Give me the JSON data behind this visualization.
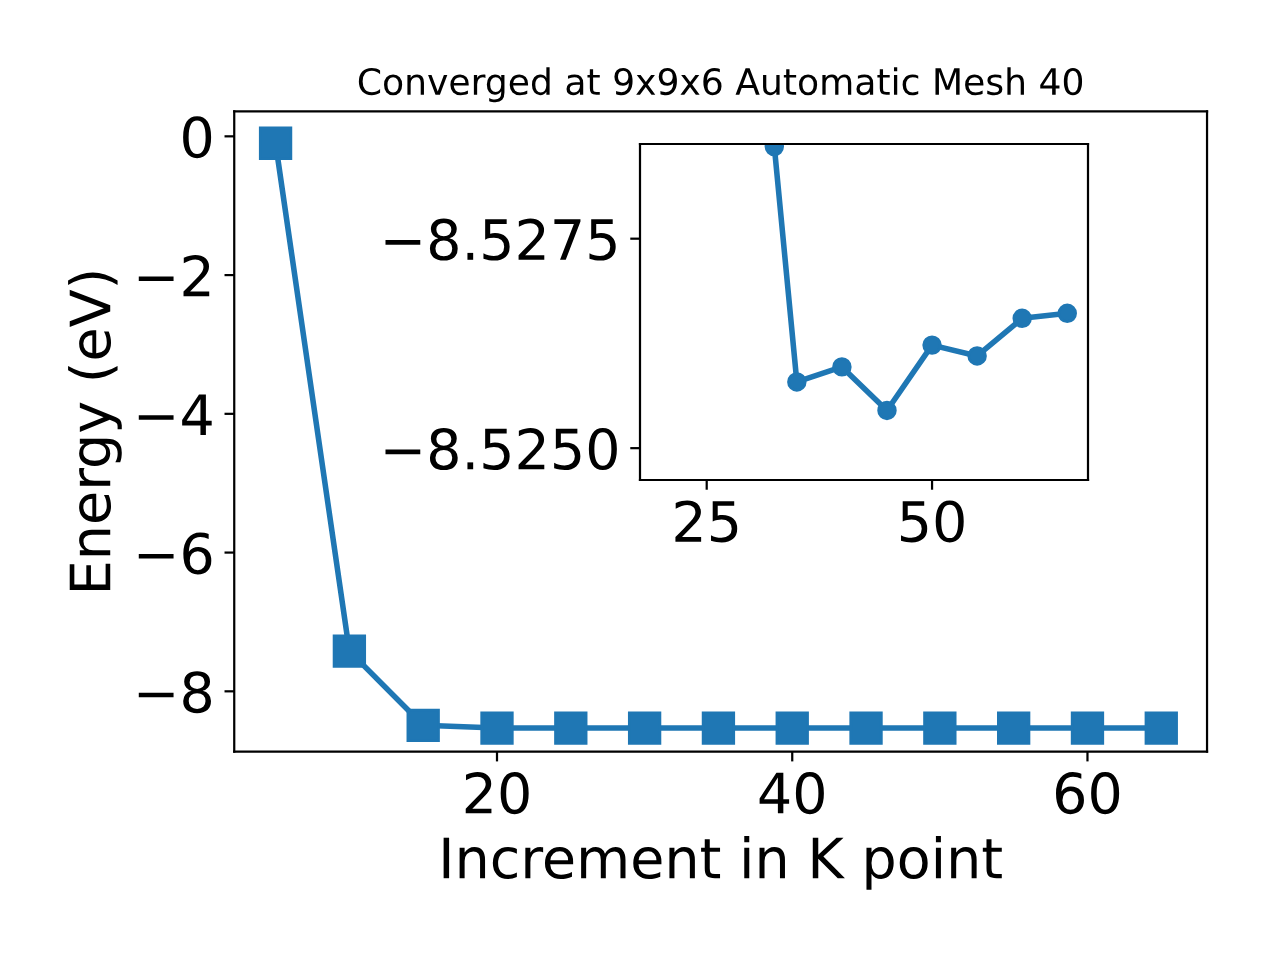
{
  "chart_data": [
    {
      "type": "line",
      "title": "Converged at 9x9x6 Automatic Mesh 40",
      "xlabel": "Increment in K point",
      "ylabel": "Energy (eV)",
      "x": [
        5,
        10,
        15,
        20,
        25,
        30,
        35,
        40,
        45,
        50,
        55,
        60,
        65
      ],
      "series": [
        {
          "color": "#1f77b4",
          "values": [
            -0.1,
            -7.42,
            -8.49,
            -8.53,
            -8.53,
            -8.53,
            -8.53,
            -8.53,
            -8.53,
            -8.53,
            -8.53,
            -8.53,
            -8.53
          ]
        }
      ],
      "xlim": [
        2.2,
        68.1
      ],
      "ylim": [
        -8.87,
        0.36
      ],
      "xticks": [
        20,
        40,
        60
      ],
      "yticks": [
        {
          "value": -8,
          "label": "−8"
        },
        {
          "value": -6,
          "label": "−6"
        },
        {
          "value": -4,
          "label": "−4"
        },
        {
          "value": -2,
          "label": "−2"
        },
        0
      ],
      "marker": "square",
      "line_style": "solid",
      "grid": false,
      "legend": false
    },
    {
      "type": "line",
      "x": [
        32.5,
        35,
        40,
        45,
        50,
        55,
        60,
        65
      ],
      "series": [
        {
          "color": "#1f77b4",
          "values": [
            -8.5286,
            -8.52579,
            -8.52597,
            -8.52545,
            -8.52623,
            -8.5261,
            -8.52655,
            -8.52661
          ]
        }
      ],
      "xlim": [
        17.6,
        67.3
      ],
      "ylim": [
        -8.52462,
        -8.52863
      ],
      "xticks": [
        25,
        50
      ],
      "yticks": [
        {
          "value": -8.525,
          "label": "−8.5250"
        },
        {
          "value": -8.5275,
          "label": "−8.5275"
        }
      ],
      "marker": "circle",
      "line_style": "solid",
      "grid": false,
      "legend": false
    }
  ]
}
